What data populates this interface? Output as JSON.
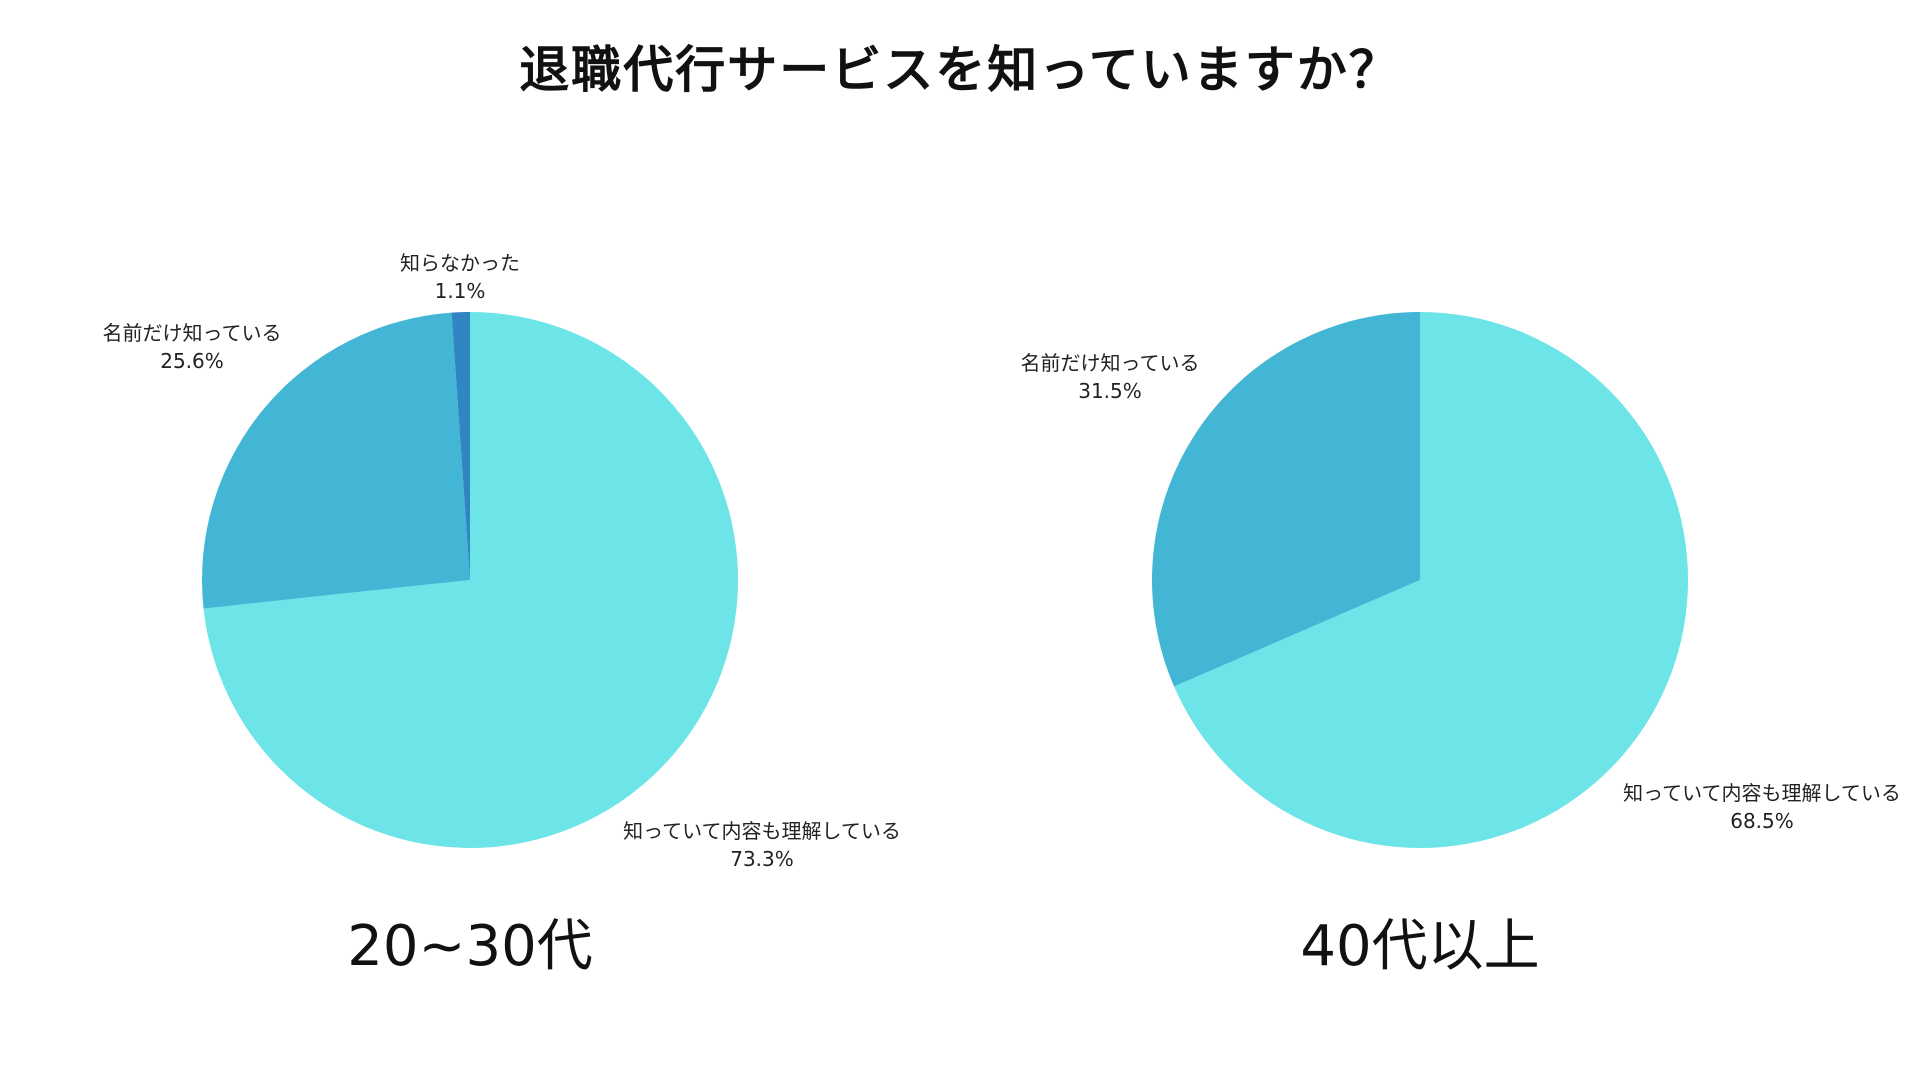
{
  "title": "退職代行サービスを知っていますか？",
  "colors": {
    "known_understood": "#6de4e8",
    "name_only": "#43b6d5",
    "not_known": "#2f86c2"
  },
  "chart_data": [
    {
      "type": "pie",
      "caption": "20~30代",
      "start_angle_deg": 0,
      "direction": "clockwise",
      "slices": [
        {
          "label": "知っていて内容も理解している",
          "value": 73.3,
          "value_text": "73.3%",
          "color": "#6de4e8"
        },
        {
          "label": "名前だけ知っている",
          "value": 25.6,
          "value_text": "25.6%",
          "color": "#43b6d5"
        },
        {
          "label": "知らなかった",
          "value": 1.1,
          "value_text": "1.1%",
          "color": "#2f86c2"
        }
      ]
    },
    {
      "type": "pie",
      "caption": "40代以上",
      "start_angle_deg": 0,
      "direction": "clockwise",
      "slices": [
        {
          "label": "知っていて内容も理解している",
          "value": 68.5,
          "value_text": "68.5%",
          "color": "#6de4e8"
        },
        {
          "label": "名前だけ知っている",
          "value": 31.5,
          "value_text": "31.5%",
          "color": "#43b6d5"
        }
      ]
    }
  ]
}
